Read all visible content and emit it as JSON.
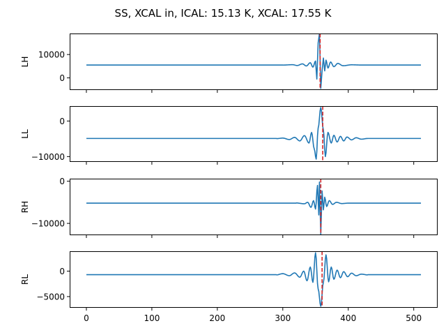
{
  "chart_data": {
    "type": "line",
    "title": "SS, XCAL in, ICAL: 15.13 K, XCAL: 17.55 K",
    "colors": {
      "series": "#1f77b4",
      "marker": "#d62728"
    },
    "x_range": [
      0,
      511
    ],
    "xlim": [
      -25.5,
      536.5
    ],
    "x_ticks": [
      0,
      100,
      200,
      300,
      400,
      500
    ],
    "marker_x": 359,
    "panels": [
      {
        "ylabel": "LH",
        "ylim": [
          -5200,
          19000
        ],
        "y_ticks": [
          0,
          10000
        ],
        "baseline": 5500,
        "marker_x": 357,
        "features": [
          {
            "x": 300,
            "y": 5480
          },
          {
            "x": 315,
            "y": 5650
          },
          {
            "x": 322,
            "y": 5300
          },
          {
            "x": 330,
            "y": 6000
          },
          {
            "x": 336,
            "y": 5100
          },
          {
            "x": 342,
            "y": 6500
          },
          {
            "x": 346,
            "y": 4600
          },
          {
            "x": 350,
            "y": 7200
          },
          {
            "x": 352,
            "y": -500
          },
          {
            "x": 354,
            "y": 15000
          },
          {
            "x": 356,
            "y": 19000
          },
          {
            "x": 358,
            "y": -4500
          },
          {
            "x": 360,
            "y": 3000
          },
          {
            "x": 362,
            "y": 8500
          },
          {
            "x": 364,
            "y": 3000
          },
          {
            "x": 366,
            "y": 7600
          },
          {
            "x": 369,
            "y": 4200
          },
          {
            "x": 373,
            "y": 6800
          },
          {
            "x": 378,
            "y": 4800
          },
          {
            "x": 384,
            "y": 6200
          },
          {
            "x": 392,
            "y": 5200
          },
          {
            "x": 405,
            "y": 5600
          },
          {
            "x": 420,
            "y": 5500
          }
        ]
      },
      {
        "ylabel": "LL",
        "ylim": [
          -11500,
          4200
        ],
        "y_ticks": [
          -10000,
          0
        ],
        "baseline": -4900,
        "marker_x": 361,
        "features": [
          {
            "x": 290,
            "y": -4950
          },
          {
            "x": 300,
            "y": -4800
          },
          {
            "x": 310,
            "y": -5200
          },
          {
            "x": 318,
            "y": -4600
          },
          {
            "x": 326,
            "y": -5600
          },
          {
            "x": 333,
            "y": -4100
          },
          {
            "x": 340,
            "y": -6200
          },
          {
            "x": 344,
            "y": -3200
          },
          {
            "x": 348,
            "y": -7800
          },
          {
            "x": 351,
            "y": -10700
          },
          {
            "x": 354,
            "y": -2000
          },
          {
            "x": 358,
            "y": 3800
          },
          {
            "x": 362,
            "y": -2500
          },
          {
            "x": 365,
            "y": -10000
          },
          {
            "x": 369,
            "y": -3200
          },
          {
            "x": 374,
            "y": -6200
          },
          {
            "x": 378,
            "y": -4000
          },
          {
            "x": 383,
            "y": -5900
          },
          {
            "x": 388,
            "y": -4300
          },
          {
            "x": 393,
            "y": -5600
          },
          {
            "x": 398,
            "y": -4500
          },
          {
            "x": 405,
            "y": -5300
          },
          {
            "x": 412,
            "y": -4700
          },
          {
            "x": 420,
            "y": -5100
          },
          {
            "x": 430,
            "y": -4900
          }
        ]
      },
      {
        "ylabel": "RH",
        "ylim": [
          -12800,
          600
        ],
        "y_ticks": [
          -10000,
          0
        ],
        "baseline": -5200,
        "marker_x": 358,
        "features": [
          {
            "x": 320,
            "y": -5150
          },
          {
            "x": 333,
            "y": -5350
          },
          {
            "x": 338,
            "y": -5000
          },
          {
            "x": 343,
            "y": -6200
          },
          {
            "x": 347,
            "y": -4600
          },
          {
            "x": 350,
            "y": -6600
          },
          {
            "x": 353,
            "y": -1000
          },
          {
            "x": 355,
            "y": -8000
          },
          {
            "x": 356,
            "y": -200
          },
          {
            "x": 358,
            "y": -12600
          },
          {
            "x": 360,
            "y": -2300
          },
          {
            "x": 362,
            "y": -6800
          },
          {
            "x": 364,
            "y": -3800
          },
          {
            "x": 367,
            "y": -6000
          },
          {
            "x": 371,
            "y": -4600
          },
          {
            "x": 376,
            "y": -5500
          },
          {
            "x": 382,
            "y": -5000
          },
          {
            "x": 390,
            "y": -5300
          },
          {
            "x": 400,
            "y": -5200
          }
        ]
      },
      {
        "ylabel": "RL",
        "ylim": [
          -7200,
          3900
        ],
        "y_ticks": [
          -5000,
          0
        ],
        "baseline": -700,
        "marker_x": 360,
        "features": [
          {
            "x": 290,
            "y": -750
          },
          {
            "x": 300,
            "y": -500
          },
          {
            "x": 310,
            "y": -900
          },
          {
            "x": 318,
            "y": -350
          },
          {
            "x": 326,
            "y": -1200
          },
          {
            "x": 332,
            "y": 0
          },
          {
            "x": 337,
            "y": -1900
          },
          {
            "x": 342,
            "y": 800
          },
          {
            "x": 346,
            "y": -2200
          },
          {
            "x": 350,
            "y": 3600
          },
          {
            "x": 354,
            "y": -3500
          },
          {
            "x": 358,
            "y": -6900
          },
          {
            "x": 362,
            "y": -2200
          },
          {
            "x": 366,
            "y": 3200
          },
          {
            "x": 370,
            "y": -2100
          },
          {
            "x": 374,
            "y": 800
          },
          {
            "x": 378,
            "y": -1600
          },
          {
            "x": 383,
            "y": 200
          },
          {
            "x": 388,
            "y": -1300
          },
          {
            "x": 393,
            "y": -100
          },
          {
            "x": 399,
            "y": -1100
          },
          {
            "x": 405,
            "y": -400
          },
          {
            "x": 412,
            "y": -900
          },
          {
            "x": 420,
            "y": -600
          },
          {
            "x": 430,
            "y": -750
          }
        ]
      }
    ]
  }
}
